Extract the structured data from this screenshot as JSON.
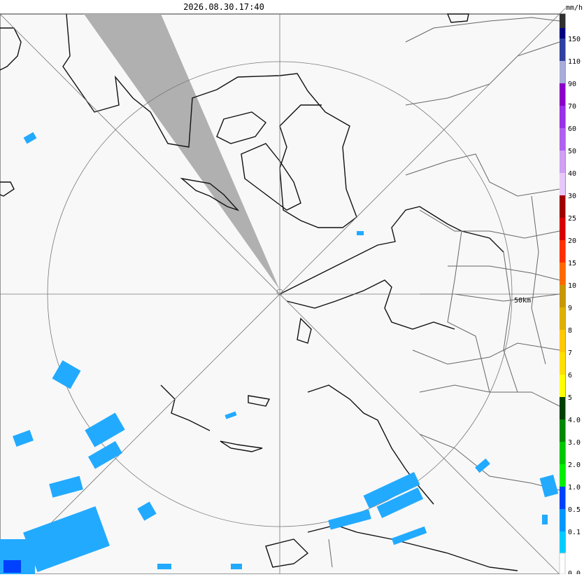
{
  "header": {
    "timestamp": "2026.08.30.17:40",
    "unit": "mm/h"
  },
  "map": {
    "range_label": "50km"
  },
  "legend": [
    {
      "label": "150",
      "color": "#000080"
    },
    {
      "label": "110",
      "color": "#3040a0"
    },
    {
      "label": "90",
      "color": "#a8acd8"
    },
    {
      "label": "70",
      "color": "#8a00c8"
    },
    {
      "label": "60",
      "color": "#9a30e8"
    },
    {
      "label": "50",
      "color": "#b060f0"
    },
    {
      "label": "40",
      "color": "#d0a0f4"
    },
    {
      "label": "30",
      "color": "#e8c8f8"
    },
    {
      "label": "25",
      "color": "#a00000"
    },
    {
      "label": "20",
      "color": "#d80000"
    },
    {
      "label": "15",
      "color": "#ff3000"
    },
    {
      "label": "10",
      "color": "#ff6a00"
    },
    {
      "label": "9",
      "color": "#c89800"
    },
    {
      "label": "8",
      "color": "#e0b000"
    },
    {
      "label": "7",
      "color": "#ffc800"
    },
    {
      "label": "6",
      "color": "#ffe000"
    },
    {
      "label": "5",
      "color": "#ffff00"
    },
    {
      "label": "4.0",
      "color": "#004000"
    },
    {
      "label": "3.0",
      "color": "#008800"
    },
    {
      "label": "2.0",
      "color": "#00c800"
    },
    {
      "label": "1.0",
      "color": "#00f000"
    },
    {
      "label": "0.5",
      "color": "#0040ff"
    },
    {
      "label": "0.1",
      "color": "#0098ff"
    },
    {
      "label": "0.0",
      "color": "#00ccff"
    }
  ]
}
